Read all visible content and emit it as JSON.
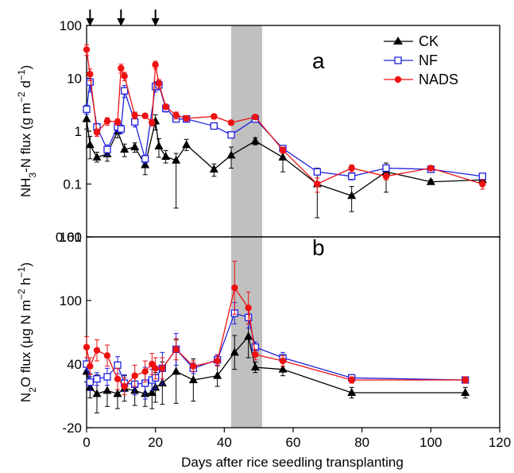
{
  "chart_data": [
    {
      "type": "line",
      "panel_label": "a",
      "ylabel_parts": [
        "NH",
        "3",
        "-N flux (g m",
        "−2",
        " d",
        "−1",
        ")"
      ],
      "yscale": "log",
      "ylim": [
        0.01,
        100
      ],
      "yticks": [
        "0.01",
        "0.1",
        "1",
        "10",
        "100"
      ],
      "xlim": [
        0,
        120
      ],
      "shaded_x": [
        42,
        51
      ],
      "fertilization_days": [
        1,
        10,
        20
      ],
      "legend_position": "top-right",
      "series": [
        {
          "name": "CK",
          "color": "#000000",
          "marker": "triangle",
          "x": [
            0,
            1,
            3,
            6,
            9,
            11,
            14,
            17,
            20,
            21,
            23,
            26,
            29,
            37,
            42,
            49,
            57,
            67,
            77,
            87,
            100,
            115
          ],
          "y": [
            1.7,
            0.55,
            0.32,
            0.37,
            1.0,
            0.45,
            0.5,
            0.23,
            1.55,
            0.52,
            0.33,
            0.28,
            0.55,
            0.19,
            0.35,
            0.65,
            0.32,
            0.1,
            0.06,
            0.17,
            0.11,
            0.12
          ],
          "err_hi": [
            0.9,
            0.25,
            0.08,
            0.1,
            0.25,
            0.12,
            0.1,
            0.08,
            0.5,
            0.2,
            0.1,
            0.1,
            0.15,
            0.05,
            0.15,
            0.1,
            0.15,
            0.1,
            0.03,
            0.08,
            0.01,
            0.02
          ],
          "err_lo": [
            0.6,
            0.25,
            0.06,
            0.1,
            0.25,
            0.12,
            0.1,
            0.08,
            0.5,
            0.2,
            0.08,
            0.245,
            0.12,
            0.05,
            0.15,
            0.1,
            0.15,
            0.077,
            0.03,
            0.1,
            0.01,
            0.02
          ]
        },
        {
          "name": "NF",
          "color": "#2020e0",
          "marker": "square",
          "x": [
            0,
            1,
            3,
            6,
            9,
            10,
            11,
            14,
            17,
            20,
            21,
            23,
            26,
            29,
            37,
            42,
            49,
            57,
            67,
            77,
            87,
            100,
            115
          ],
          "y": [
            2.6,
            8.5,
            1.2,
            0.45,
            1.2,
            1.1,
            5.8,
            1.5,
            0.3,
            7.0,
            7.5,
            2.7,
            1.7,
            1.7,
            1.25,
            0.85,
            1.7,
            0.47,
            0.17,
            0.14,
            0.2,
            0.19,
            0.14
          ],
          "err_hi": [
            0.5,
            3.0,
            0.2,
            0.1,
            0.2,
            0.2,
            1.5,
            0.3,
            0.05,
            1.5,
            1.5,
            0.4,
            0.2,
            0.2,
            0.15,
            0.1,
            0.2,
            0.06,
            0.02,
            0.02,
            0.02,
            0.02,
            0.02
          ],
          "err_lo": [
            0.5,
            3.0,
            0.2,
            0.1,
            0.2,
            0.2,
            1.5,
            0.3,
            0.05,
            1.5,
            1.5,
            0.4,
            0.2,
            0.2,
            0.15,
            0.1,
            0.2,
            0.06,
            0.02,
            0.02,
            0.02,
            0.02,
            0.02
          ]
        },
        {
          "name": "NADS",
          "color": "#ee1111",
          "marker": "circle",
          "x": [
            0,
            1,
            3,
            6,
            9,
            10,
            11,
            14,
            17,
            19,
            20,
            21,
            23,
            26,
            29,
            37,
            42,
            49,
            57,
            67,
            77,
            87,
            100,
            115
          ],
          "y": [
            35,
            12,
            0.95,
            1.55,
            1.5,
            15.5,
            11,
            2.0,
            1.95,
            1.45,
            18,
            8.0,
            2.9,
            2.0,
            1.75,
            1.9,
            1.45,
            1.85,
            0.44,
            0.1,
            0.2,
            0.14,
            0.2,
            0.1
          ],
          "err_hi": [
            8,
            3,
            0.15,
            0.25,
            0.2,
            3,
            2,
            0.3,
            0.2,
            0.2,
            3,
            1.5,
            0.3,
            0.3,
            0.2,
            0.2,
            0.15,
            0.2,
            0.06,
            0.03,
            0.03,
            0.02,
            0.02,
            0.02
          ],
          "err_lo": [
            8,
            3,
            0.15,
            0.25,
            0.2,
            3,
            2,
            0.3,
            0.2,
            0.2,
            3,
            1.5,
            0.3,
            0.3,
            0.2,
            0.2,
            0.15,
            0.2,
            0.06,
            0.03,
            0.03,
            0.02,
            0.02,
            0.02
          ]
        }
      ]
    },
    {
      "type": "line",
      "panel_label": "b",
      "ylabel_parts": [
        "N",
        "2",
        "O flux (μg N m",
        "−2",
        " h",
        "−1",
        ")"
      ],
      "yscale": "linear",
      "ylim": [
        -20,
        160
      ],
      "yticks": [
        -20,
        40,
        100,
        160
      ],
      "xlim": [
        0,
        120
      ],
      "xticks": [
        0,
        20,
        40,
        60,
        80,
        100,
        120
      ],
      "xlabel": "Days after rice seedling transplanting",
      "shaded_x": [
        42,
        51
      ],
      "series": [
        {
          "name": "CK",
          "color": "#000000",
          "marker": "triangle",
          "x": [
            0,
            1,
            3,
            6,
            9,
            11,
            14,
            17,
            19,
            20,
            22,
            26,
            31,
            38,
            43,
            47,
            49,
            57,
            77,
            110
          ],
          "y": [
            33,
            18,
            12,
            15,
            12,
            17,
            15,
            12,
            13,
            18,
            22,
            33,
            25,
            29,
            51,
            66,
            37,
            35,
            13,
            13
          ],
          "err": [
            10,
            10,
            18,
            15,
            14,
            12,
            14,
            12,
            15,
            14,
            20,
            30,
            20,
            10,
            16,
            20,
            5,
            6,
            5,
            5
          ]
        },
        {
          "name": "NF",
          "color": "#2020e0",
          "marker": "square",
          "x": [
            0,
            1,
            3,
            6,
            9,
            11,
            14,
            17,
            19,
            20,
            22,
            26,
            31,
            38,
            43,
            47,
            49,
            57,
            77,
            110
          ],
          "y": [
            40,
            23,
            26,
            28,
            39,
            22,
            21,
            22,
            25,
            27,
            36,
            54,
            36,
            44,
            88,
            84,
            56,
            46,
            27,
            25
          ],
          "err": [
            6,
            8,
            6,
            8,
            8,
            8,
            10,
            15,
            10,
            10,
            15,
            15,
            5,
            5,
            10,
            10,
            5,
            5,
            3,
            3
          ]
        },
        {
          "name": "NADS",
          "color": "#ee1111",
          "marker": "circle",
          "x": [
            0,
            1,
            3,
            6,
            9,
            11,
            14,
            17,
            19,
            20,
            22,
            26,
            31,
            38,
            43,
            47,
            49,
            57,
            77,
            110
          ],
          "y": [
            56,
            38,
            53,
            48,
            26,
            19,
            29,
            33,
            40,
            36,
            36,
            54,
            38,
            43,
            112,
            93,
            49,
            43,
            25,
            25
          ],
          "err": [
            10,
            8,
            10,
            10,
            10,
            8,
            10,
            10,
            10,
            10,
            10,
            10,
            5,
            5,
            25,
            15,
            5,
            5,
            3,
            3
          ]
        }
      ]
    }
  ]
}
